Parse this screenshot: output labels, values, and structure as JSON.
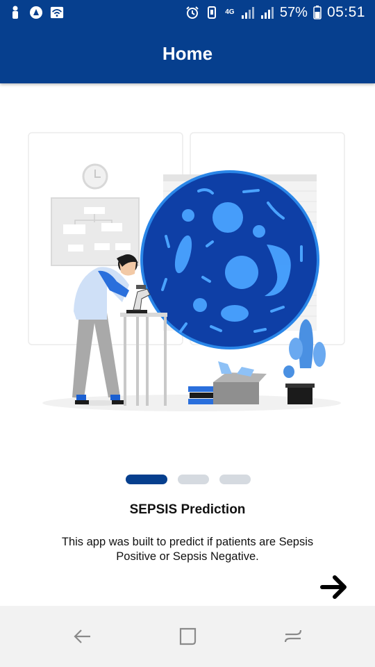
{
  "status_bar": {
    "left_icons": [
      "person-icon",
      "android-auto-icon",
      "wifi-hotspot-icon"
    ],
    "right_icons": [
      "alarm-icon",
      "vibrate-icon",
      "4g-icon",
      "signal-icon",
      "signal-icon",
      "battery-icon"
    ],
    "network_label": "4G",
    "battery": "57%",
    "time": "05:51"
  },
  "app_bar": {
    "title": "Home"
  },
  "onboarding": {
    "illustration": "scientist-microscope-bacteria-illustration",
    "page_indicator": {
      "count": 3,
      "active_index": 0
    },
    "title": "SEPSIS Prediction",
    "description": "This app was built to predict if patients are Sepsis Positive or Sepsis Negative.",
    "next_icon": "arrow-right-icon"
  },
  "nav_bar": {
    "buttons": [
      "back-icon",
      "recent-apps-icon",
      "overview-icon"
    ]
  },
  "colors": {
    "primary": "#063f8e",
    "dot_inactive": "#d5dae0",
    "nav_bg": "#f2f2f2",
    "circle_fill": "#0e3fa6"
  }
}
